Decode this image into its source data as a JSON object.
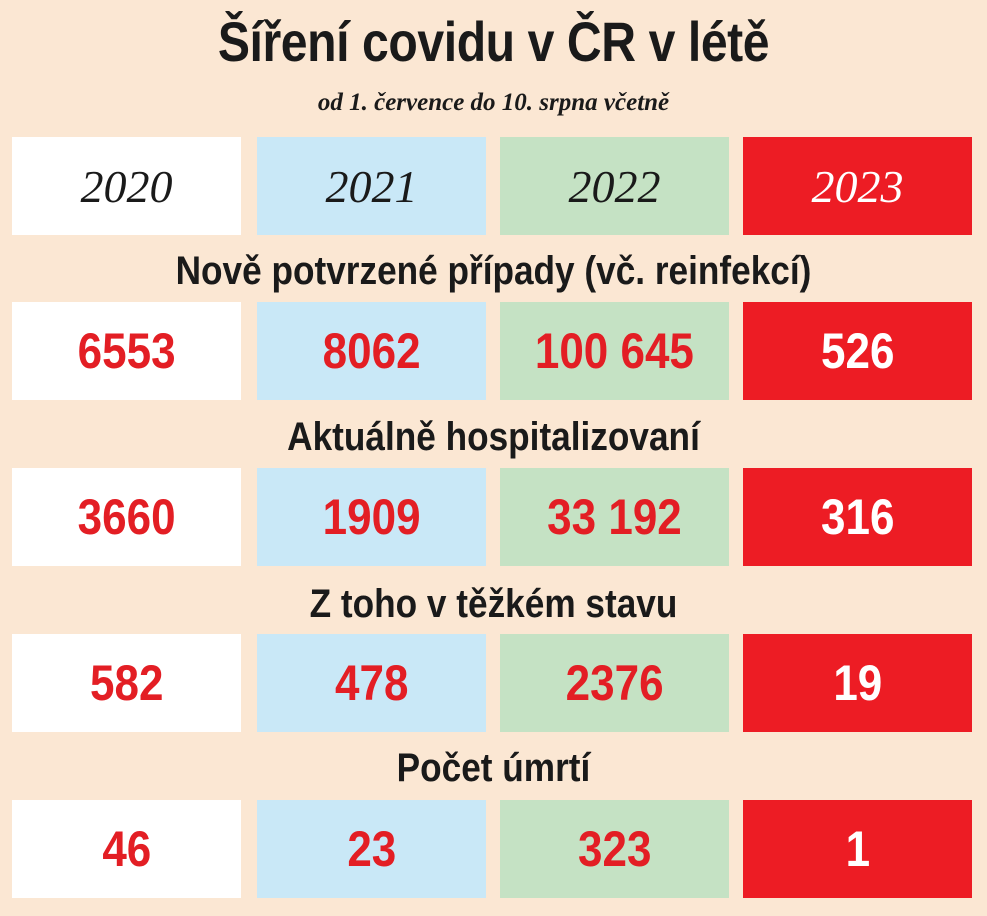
{
  "title": "Šíření covidu v ČR v létě",
  "subtitle": "od 1. července do 10. srpna včetně",
  "years": [
    "2020",
    "2021",
    "2022",
    "2023"
  ],
  "colors": {
    "background": "#fbe7d3",
    "2020": "#ffffff",
    "2021": "#c9e8f7",
    "2022": "#c5e2c4",
    "2023": "#ed1c24",
    "value_text": "#e31e24"
  },
  "sections": [
    {
      "heading": "Nově potvrzené případy (vč. reinfekcí)",
      "values": [
        "6553",
        "8062",
        "100 645",
        "526"
      ]
    },
    {
      "heading": "Aktuálně hospitalizovaní",
      "values": [
        "3660",
        "1909",
        "33 192",
        "316"
      ]
    },
    {
      "heading": "Z toho v těžkém stavu",
      "values": [
        "582",
        "478",
        "2376",
        "19"
      ]
    },
    {
      "heading": "Počet úmrtí",
      "values": [
        "46",
        "23",
        "323",
        "1"
      ]
    }
  ]
}
